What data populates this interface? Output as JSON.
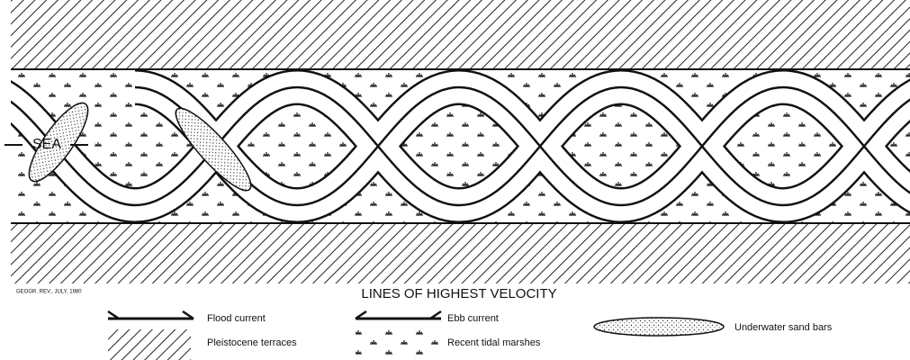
{
  "diagram": {
    "sea_label": "SEA",
    "source": "GEOGR. REV., JULY, 1980",
    "title": "LINES OF HIGHEST VELOCITY"
  },
  "legend": {
    "items": [
      {
        "label": "Flood current"
      },
      {
        "label": "Ebb current"
      },
      {
        "label": "Underwater sand bars"
      },
      {
        "label": "Pleistocene terraces"
      },
      {
        "label": "Recent tidal marshes"
      }
    ]
  }
}
